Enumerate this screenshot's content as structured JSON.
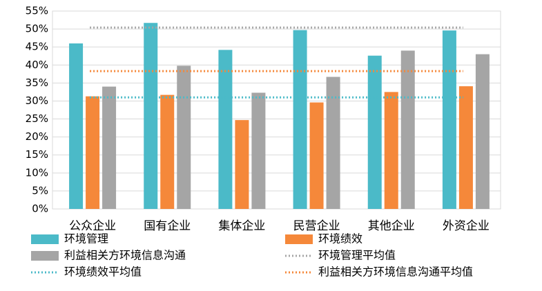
{
  "chart_data": {
    "type": "bar",
    "categories": [
      "公众企业",
      "国有企业",
      "集体企业",
      "民营企业",
      "其他企业",
      "外资企业"
    ],
    "series": [
      {
        "name": "环境管理",
        "type": "bar",
        "color": "#4bbac8",
        "values": [
          46.0,
          51.7,
          44.2,
          49.7,
          42.6,
          49.6
        ]
      },
      {
        "name": "环境绩效",
        "type": "bar",
        "color": "#f5883a",
        "values": [
          31.3,
          31.7,
          24.7,
          29.6,
          32.5,
          34.1
        ]
      },
      {
        "name": "利益相关方环境信息沟通",
        "type": "bar",
        "color": "#a5a5a5",
        "values": [
          34.0,
          39.8,
          32.3,
          36.7,
          44.0,
          43.0
        ]
      },
      {
        "name": "环境管理平均值",
        "type": "line",
        "style": "dotted",
        "color": "#a5a5a5",
        "values": [
          50.4,
          50.4,
          50.4,
          50.4,
          50.4,
          50.4
        ]
      },
      {
        "name": "环境绩效平均值",
        "type": "line",
        "style": "dotted",
        "color": "#4bbac8",
        "values": [
          31.0,
          31.0,
          31.0,
          31.0,
          31.0,
          31.0
        ]
      },
      {
        "name": "利益相关方环境信息沟通平均值",
        "type": "line",
        "style": "dotted",
        "color": "#f5883a",
        "values": [
          38.3,
          38.3,
          38.3,
          38.3,
          38.3,
          38.3
        ]
      }
    ],
    "ylim": [
      0,
      55
    ],
    "yticks": [
      {
        "value": 0,
        "label": "0%"
      },
      {
        "value": 5,
        "label": "5%"
      },
      {
        "value": 10,
        "label": "10%"
      },
      {
        "value": 15,
        "label": "15%"
      },
      {
        "value": 20,
        "label": "20%"
      },
      {
        "value": 25,
        "label": "25%"
      },
      {
        "value": 30,
        "label": "30%"
      },
      {
        "value": 35,
        "label": "35%"
      },
      {
        "value": 40,
        "label": "40%"
      },
      {
        "value": 45,
        "label": "45%"
      },
      {
        "value": 50,
        "label": "50%"
      },
      {
        "value": 55,
        "label": "55%"
      }
    ],
    "grid": true
  }
}
